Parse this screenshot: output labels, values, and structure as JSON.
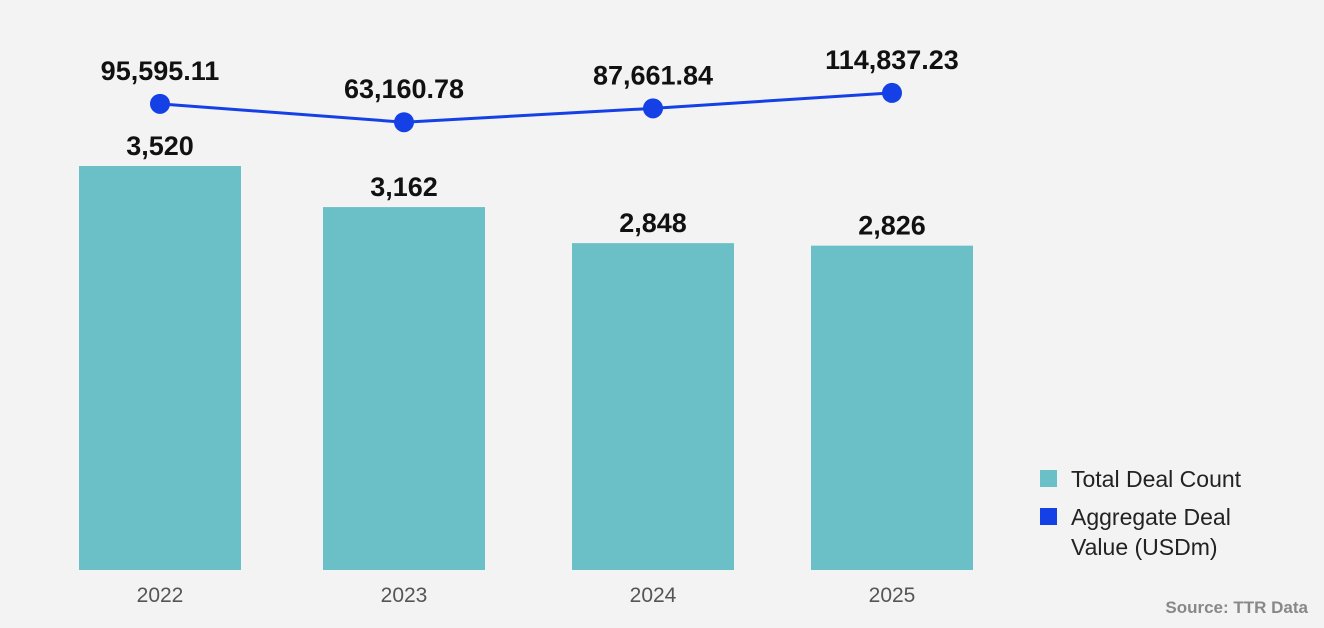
{
  "chart_data": {
    "type": "bar",
    "categories": [
      "2022",
      "2023",
      "2024",
      "2025"
    ],
    "series": [
      {
        "name": "Total Deal Count",
        "type": "bar",
        "values": [
          3520,
          3162,
          2848,
          2826
        ],
        "labels": [
          "3,520",
          "3,162",
          "2,848",
          "2,826"
        ],
        "color": "#6bbfc6"
      },
      {
        "name": "Aggregate Deal Value (USDm)",
        "type": "line",
        "values": [
          95595.11,
          63160.78,
          87661.84,
          114837.23
        ],
        "labels": [
          "95,595.11",
          "63,160.78",
          "87,661.84",
          "114,837.23"
        ],
        "color": "#1540e6"
      }
    ],
    "legend_position": "bottom-right",
    "grid": false
  },
  "legend": {
    "items": [
      {
        "label": "Total Deal Count",
        "color": "#6bbfc6"
      },
      {
        "label": "Aggregate Deal Value (USDm)",
        "color": "#1540e6"
      }
    ]
  },
  "source": "Source: TTR Data"
}
